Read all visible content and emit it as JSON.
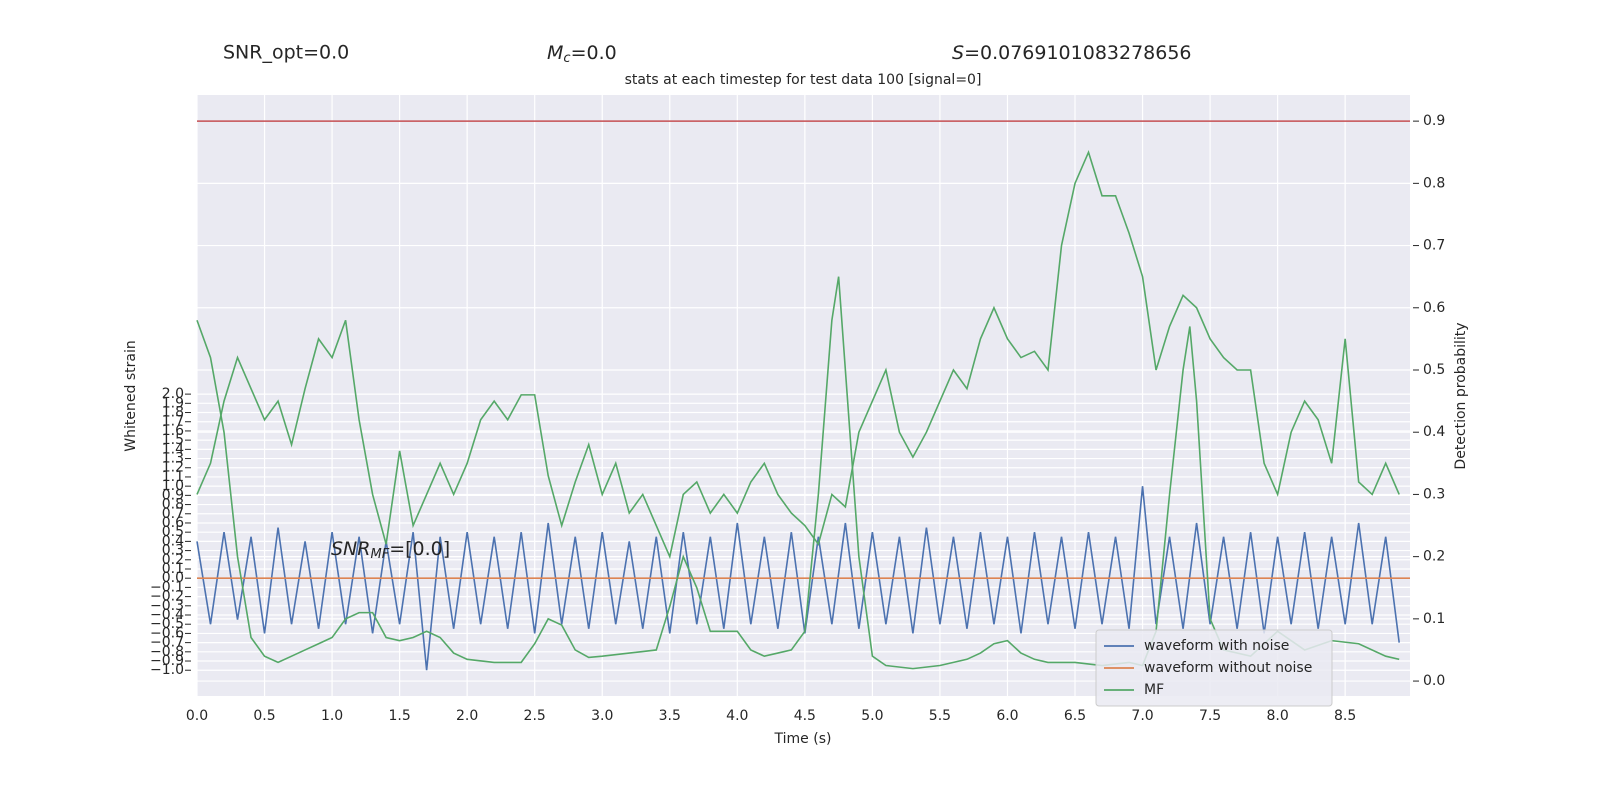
{
  "chart_data": {
    "type": "line",
    "title": "stats at each timestep for test data 100 [signal=0]",
    "annotations": {
      "snr_opt": "SNR_opt=0.0",
      "mc": [
        "M",
        "c",
        "=0.0"
      ],
      "s": [
        "S",
        "=0.0769101083278656"
      ],
      "snr_mf": [
        "SNR",
        "MF",
        "=[0.0]"
      ]
    },
    "xlabel": "Time (s)",
    "ylabel": "Whitened strain",
    "y2label": "Detection probability",
    "xlim": [
      0,
      8.98
    ],
    "ylim": [
      -1.28,
      5.25
    ],
    "y2lim": [
      -0.024,
      0.942
    ],
    "xticks": [
      {
        "value": 0,
        "label": "0.0"
      },
      0.5,
      {
        "value": 1,
        "label": "1.0"
      },
      1.5,
      {
        "value": 2,
        "label": "2.0"
      },
      2.5,
      {
        "value": 3,
        "label": "3.0"
      },
      3.5,
      {
        "value": 4,
        "label": "4.0"
      },
      4.5,
      {
        "value": 5,
        "label": "5.0"
      },
      5.5,
      {
        "value": 6,
        "label": "6.0"
      },
      6.5,
      {
        "value": 7,
        "label": "7.0"
      },
      7.5,
      {
        "value": 8,
        "label": "8.0"
      },
      8.5
    ],
    "yticks": [
      {
        "value": -1,
        "label": "−1.0"
      },
      {
        "value": -0.9,
        "label": "−0.9"
      },
      {
        "value": -0.8,
        "label": "−0.8"
      },
      {
        "value": -0.7,
        "label": "−0.7"
      },
      {
        "value": -0.6,
        "label": "−0.6"
      },
      {
        "value": -0.5,
        "label": "−0.5"
      },
      {
        "value": -0.4,
        "label": "−0.4"
      },
      {
        "value": -0.3,
        "label": "−0.3"
      },
      {
        "value": -0.2,
        "label": "−0.2"
      },
      {
        "value": -0.1,
        "label": "−0.1"
      },
      {
        "value": 0,
        "label": "0.0"
      },
      0.1,
      0.2,
      0.3,
      0.4,
      0.5,
      0.6,
      0.7,
      0.8,
      0.9,
      {
        "value": 1,
        "label": "1.0"
      },
      1.1,
      1.2,
      1.3,
      1.4,
      1.5,
      1.6,
      1.7,
      1.8,
      1.9,
      {
        "value": 2,
        "label": "2.0"
      }
    ],
    "y2ticks": [
      {
        "value": 0,
        "label": "0.0"
      },
      0.1,
      0.2,
      0.3,
      0.4,
      0.5,
      0.6,
      0.7,
      0.8,
      0.9
    ],
    "grid": true,
    "legend": "lower right",
    "hlines": [
      {
        "value": 0.9,
        "color": "#c44e52",
        "axis": "y2"
      }
    ],
    "series": [
      {
        "name": "waveform with noise",
        "color": "#4c72b0",
        "x": [
          0,
          0.1,
          0.2,
          0.3,
          0.4,
          0.5,
          0.6,
          0.7,
          0.8,
          0.9,
          1,
          1.1,
          1.2,
          1.3,
          1.4,
          1.5,
          1.6,
          1.7,
          1.8,
          1.9,
          2,
          2.1,
          2.2,
          2.3,
          2.4,
          2.5,
          2.6,
          2.7,
          2.8,
          2.9,
          3,
          3.1,
          3.2,
          3.3,
          3.4,
          3.5,
          3.6,
          3.7,
          3.8,
          3.9,
          4,
          4.1,
          4.2,
          4.3,
          4.4,
          4.5,
          4.6,
          4.7,
          4.8,
          4.9,
          5,
          5.1,
          5.2,
          5.3,
          5.4,
          5.5,
          5.6,
          5.7,
          5.8,
          5.9,
          6,
          6.1,
          6.2,
          6.3,
          6.4,
          6.5,
          6.6,
          6.7,
          6.8,
          6.9,
          7,
          7.1,
          7.2,
          7.3,
          7.4,
          7.5,
          7.6,
          7.7,
          7.8,
          7.9,
          8,
          8.1,
          8.2,
          8.3,
          8.4,
          8.5,
          8.6,
          8.7,
          8.8,
          8.9
        ],
        "values": [
          0.4,
          -0.5,
          0.5,
          -0.45,
          0.45,
          -0.6,
          0.55,
          -0.5,
          0.4,
          -0.55,
          0.5,
          -0.5,
          0.45,
          -0.6,
          0.4,
          -0.5,
          0.5,
          -1.0,
          0.45,
          -0.55,
          0.5,
          -0.5,
          0.45,
          -0.55,
          0.5,
          -0.6,
          0.6,
          -0.5,
          0.45,
          -0.55,
          0.5,
          -0.5,
          0.4,
          -0.55,
          0.45,
          -0.6,
          0.5,
          -0.5,
          0.45,
          -0.55,
          0.6,
          -0.5,
          0.45,
          -0.55,
          0.5,
          -0.6,
          0.45,
          -0.5,
          0.6,
          -0.55,
          0.5,
          -0.5,
          0.45,
          -0.6,
          0.55,
          -0.5,
          0.45,
          -0.55,
          0.5,
          -0.5,
          0.45,
          -0.6,
          0.5,
          -0.5,
          0.45,
          -0.55,
          0.5,
          -0.5,
          0.45,
          -0.55,
          1.0,
          -0.5,
          0.45,
          -0.55,
          0.6,
          -0.5,
          0.45,
          -0.55,
          0.5,
          -0.6,
          0.45,
          -0.5,
          0.5,
          -0.55,
          0.45,
          -0.5,
          0.6,
          -0.5,
          0.45,
          -0.7
        ]
      },
      {
        "name": "waveform without noise",
        "color": "#dd8452",
        "x": [
          0,
          8.98
        ],
        "values": [
          0,
          0
        ]
      },
      {
        "name": "MF",
        "color": "#55a868",
        "axis": "y2",
        "x": [
          0,
          0.1,
          0.2,
          0.3,
          0.4,
          0.5,
          0.6,
          0.7,
          0.8,
          0.9,
          1,
          1.1,
          1.2,
          1.3,
          1.4,
          1.5,
          1.6,
          1.7,
          1.8,
          1.9,
          2,
          2.2,
          2.4,
          2.5,
          2.6,
          2.7,
          2.8,
          2.9,
          3,
          3.2,
          3.4,
          3.5,
          3.6,
          3.7,
          3.8,
          3.9,
          4,
          4.1,
          4.2,
          4.3,
          4.4,
          4.5,
          4.6,
          4.7,
          4.75,
          4.8,
          4.9,
          5,
          5.1,
          5.3,
          5.5,
          5.7,
          5.8,
          5.9,
          6,
          6.1,
          6.2,
          6.3,
          6.5,
          6.7,
          6.9,
          7,
          7.1,
          7.2,
          7.3,
          7.35,
          7.4,
          7.5,
          7.6,
          7.8,
          8,
          8.2,
          8.4,
          8.6,
          8.8,
          8.9
        ],
        "values": [
          0.58,
          0.52,
          0.4,
          0.2,
          0.07,
          0.04,
          0.03,
          0.04,
          0.05,
          0.06,
          0.07,
          0.1,
          0.11,
          0.11,
          0.07,
          0.065,
          0.07,
          0.08,
          0.07,
          0.045,
          0.035,
          0.03,
          0.03,
          0.06,
          0.1,
          0.09,
          0.05,
          0.038,
          0.04,
          0.045,
          0.05,
          0.12,
          0.2,
          0.15,
          0.08,
          0.08,
          0.08,
          0.05,
          0.04,
          0.045,
          0.05,
          0.08,
          0.3,
          0.58,
          0.65,
          0.5,
          0.2,
          0.04,
          0.025,
          0.02,
          0.025,
          0.035,
          0.045,
          0.06,
          0.065,
          0.045,
          0.035,
          0.03,
          0.03,
          0.025,
          0.03,
          0.025,
          0.08,
          0.3,
          0.5,
          0.57,
          0.45,
          0.1,
          0.05,
          0.04,
          0.08,
          0.05,
          0.065,
          0.06,
          0.04,
          0.035
        ]
      },
      {
        "color": "#55a868",
        "axis": "y2",
        "x": [
          0,
          0.1,
          0.2,
          0.3,
          0.4,
          0.5,
          0.6,
          0.7,
          0.8,
          0.9,
          1,
          1.1,
          1.2,
          1.3,
          1.4,
          1.5,
          1.6,
          1.7,
          1.8,
          1.9,
          2,
          2.1,
          2.2,
          2.3,
          2.4,
          2.5,
          2.6,
          2.7,
          2.8,
          2.9,
          3,
          3.1,
          3.2,
          3.3,
          3.4,
          3.5,
          3.6,
          3.7,
          3.8,
          3.9,
          4,
          4.1,
          4.2,
          4.3,
          4.4,
          4.5,
          4.6,
          4.7,
          4.8,
          4.9,
          5,
          5.1,
          5.2,
          5.3,
          5.4,
          5.5,
          5.6,
          5.7,
          5.8,
          5.9,
          6,
          6.1,
          6.2,
          6.3,
          6.4,
          6.5,
          6.6,
          6.7,
          6.8,
          6.9,
          7,
          7.1,
          7.2,
          7.3,
          7.4,
          7.5,
          7.6,
          7.7,
          7.8,
          7.9,
          8,
          8.1,
          8.2,
          8.3,
          8.4,
          8.5,
          8.6,
          8.7,
          8.8,
          8.9
        ],
        "values": [
          0.3,
          0.35,
          0.45,
          0.52,
          0.47,
          0.42,
          0.45,
          0.38,
          0.47,
          0.55,
          0.52,
          0.58,
          0.42,
          0.3,
          0.22,
          0.37,
          0.25,
          0.3,
          0.35,
          0.3,
          0.35,
          0.42,
          0.45,
          0.42,
          0.46,
          0.46,
          0.33,
          0.25,
          0.32,
          0.38,
          0.3,
          0.35,
          0.27,
          0.3,
          0.25,
          0.2,
          0.3,
          0.32,
          0.27,
          0.3,
          0.27,
          0.32,
          0.35,
          0.3,
          0.27,
          0.25,
          0.22,
          0.3,
          0.28,
          0.4,
          0.45,
          0.5,
          0.4,
          0.36,
          0.4,
          0.45,
          0.5,
          0.47,
          0.55,
          0.6,
          0.55,
          0.52,
          0.53,
          0.5,
          0.7,
          0.8,
          0.85,
          0.78,
          0.78,
          0.72,
          0.65,
          0.5,
          0.57,
          0.62,
          0.6,
          0.55,
          0.52,
          0.5,
          0.5,
          0.35,
          0.3,
          0.4,
          0.45,
          0.42,
          0.35,
          0.55,
          0.32,
          0.3,
          0.35,
          0.3
        ]
      }
    ]
  }
}
